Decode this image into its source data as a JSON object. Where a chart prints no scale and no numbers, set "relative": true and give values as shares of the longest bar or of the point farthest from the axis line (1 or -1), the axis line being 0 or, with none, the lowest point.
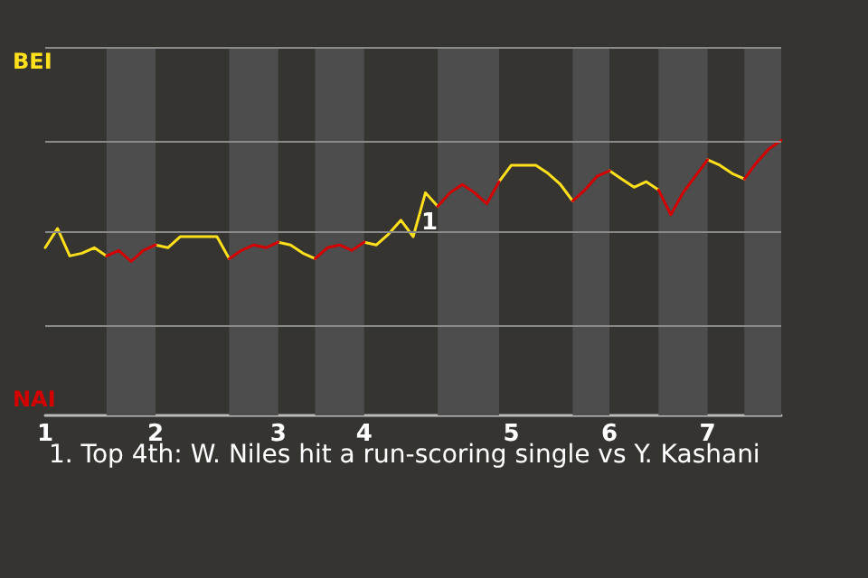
{
  "chart_data": {
    "type": "line",
    "relative": true,
    "categories": [
      "1",
      null,
      null,
      null,
      null,
      null,
      null,
      null,
      null,
      "2",
      null,
      null,
      null,
      null,
      null,
      null,
      null,
      null,
      null,
      "3",
      null,
      null,
      null,
      null,
      null,
      null,
      "4",
      null,
      null,
      null,
      null,
      null,
      null,
      null,
      null,
      null,
      null,
      null,
      "5",
      null,
      null,
      null,
      null,
      null,
      null,
      null,
      "6",
      null,
      null,
      null,
      null,
      null,
      null,
      null,
      "7",
      null,
      null,
      null,
      null,
      null,
      null
    ],
    "series": [
      {
        "name": "BEI",
        "color": "#ffe01a",
        "values": [
          0.61,
          0.68,
          0.58,
          0.59,
          0.61,
          0.58,
          null,
          null,
          null,
          0.62,
          0.61,
          0.65,
          0.65,
          0.65,
          0.65,
          0.57,
          null,
          null,
          null,
          0.63,
          0.62,
          0.59,
          0.57,
          null,
          null,
          null,
          0.63,
          0.62,
          0.66,
          0.71,
          0.65,
          0.81,
          0.76,
          null,
          null,
          null,
          null,
          0.85,
          0.91,
          0.91,
          0.91,
          0.88,
          0.84,
          0.78,
          null,
          null,
          0.89,
          0.86,
          0.83,
          0.85,
          0.82,
          null,
          null,
          null,
          0.93,
          0.91,
          0.88,
          0.86,
          null,
          null,
          null
        ]
      },
      {
        "name": "NAI",
        "color": "#d40000",
        "values": [
          null,
          null,
          null,
          null,
          null,
          0.58,
          0.6,
          0.56,
          0.6,
          0.62,
          null,
          null,
          null,
          null,
          null,
          0.57,
          0.6,
          0.62,
          0.61,
          0.63,
          null,
          null,
          0.57,
          0.61,
          0.62,
          0.6,
          0.63,
          null,
          null,
          null,
          null,
          null,
          0.76,
          0.81,
          0.84,
          0.81,
          0.77,
          0.85,
          null,
          null,
          null,
          null,
          null,
          0.78,
          0.82,
          0.87,
          0.89,
          null,
          null,
          null,
          0.82,
          0.73,
          0.81,
          0.87,
          0.93,
          null,
          null,
          0.86,
          0.92,
          0.97,
          1
        ]
      }
    ],
    "ref_lines": [
      {
        "axis": "y",
        "value": 0.33,
        "color": "#8a8a8a"
      },
      {
        "axis": "y",
        "value": 0.67,
        "color": "#8a8a8a"
      },
      {
        "axis": "y",
        "value": 1,
        "color": "#8a8a8a"
      },
      {
        "axis": "y",
        "value": 1.34,
        "color": "#8a8a8a"
      }
    ],
    "annotations": [
      "1",
      "1. Top 4th: W. Niles hit a run-scoring single vs Y. Kashani"
    ],
    "legend": "left",
    "marker": "none",
    "line_style": "solid"
  }
}
